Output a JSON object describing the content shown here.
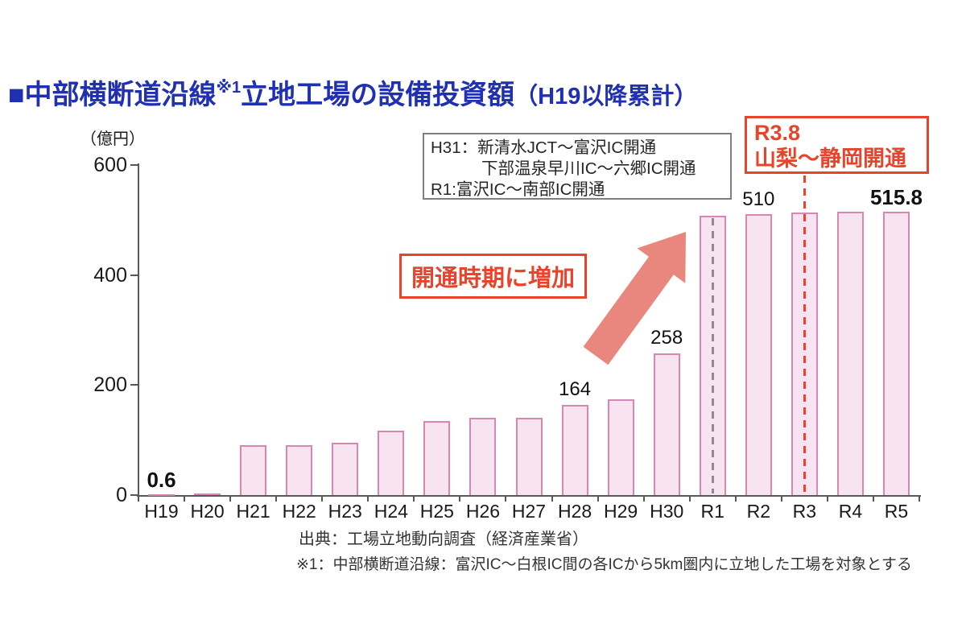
{
  "title": {
    "prefix": "■中部横断道沿線",
    "note": "※1",
    "main": "立地工場の設備投資額",
    "suffix": "（H19以降累計）"
  },
  "chart_data": {
    "type": "bar",
    "unit_label": "（億円）",
    "categories": [
      "H19",
      "H20",
      "H21",
      "H22",
      "H23",
      "H24",
      "H25",
      "H26",
      "H27",
      "H28",
      "H29",
      "H30",
      "R1",
      "R2",
      "R3",
      "R4",
      "R5"
    ],
    "values": [
      0.6,
      3,
      91,
      91,
      95,
      117,
      135,
      140,
      140,
      164,
      174,
      258,
      508,
      510,
      513,
      515,
      515.8
    ],
    "ylim": [
      0,
      600
    ],
    "y_ticks": [
      0,
      200,
      400,
      600
    ],
    "grid": "off",
    "value_labels": [
      {
        "index": 0,
        "text": "0.6",
        "bold": true
      },
      {
        "index": 9,
        "text": "164",
        "bold": false
      },
      {
        "index": 11,
        "text": "258",
        "bold": false
      },
      {
        "index": 13,
        "text": "510",
        "bold": false
      },
      {
        "index": 16,
        "text": "515.8",
        "bold": true
      }
    ],
    "markers": [
      {
        "index": 12,
        "style": "gray-dashed"
      },
      {
        "index": 14,
        "style": "red-dashed"
      }
    ]
  },
  "annotations": {
    "opening_box_lines": [
      "H31：新清水JCT～富沢IC開通",
      "下部温泉早川IC～六郷IC開通",
      "R1:富沢IC～南部IC開通"
    ],
    "r38_label": {
      "line1": "R3.8",
      "line2": "山梨～静岡開通"
    },
    "increase_callout": "開通時期に増加"
  },
  "footer": {
    "source": "出典：工場立地動向調査（経済産業省）",
    "footnote": "※1：中部横断道沿線：富沢IC～白根IC間の各ICから5km圏内に立地した工場を対象とする"
  },
  "colors": {
    "title": "#2030b2",
    "red": "#e8432b",
    "arrow": "#e9867d",
    "bar_fill": "#f8e4f0",
    "bar_border": "#d886b4",
    "axis": "#595959",
    "gray_dash": "#8c8c8c"
  }
}
